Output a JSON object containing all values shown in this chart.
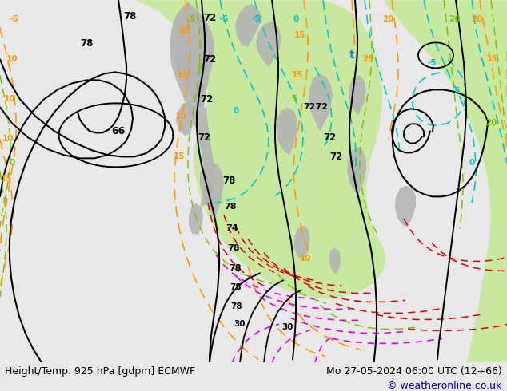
{
  "title_left": "Height/Temp. 925 hPa [gdpm] ECMWF",
  "title_right": "Mo 27-05-2024 06:00 UTC (12+66)",
  "copyright": "© weatheronline.co.uk",
  "figsize": [
    6.34,
    4.9
  ],
  "dpi": 100,
  "bg_color": "#e8e8e8",
  "ocean_color": "#f0f0f0",
  "land_green": "#c8e8a0",
  "land_gray": "#b4b4b4",
  "black": "#000000",
  "orange": "#ff9900",
  "cyan": "#00c8c8",
  "green": "#80c000",
  "red": "#e00000",
  "magenta": "#e000e0",
  "blue": "#0000cc",
  "bottom_bg": "#cccccc",
  "title_fontsize": 9,
  "copyright_fontsize": 9
}
